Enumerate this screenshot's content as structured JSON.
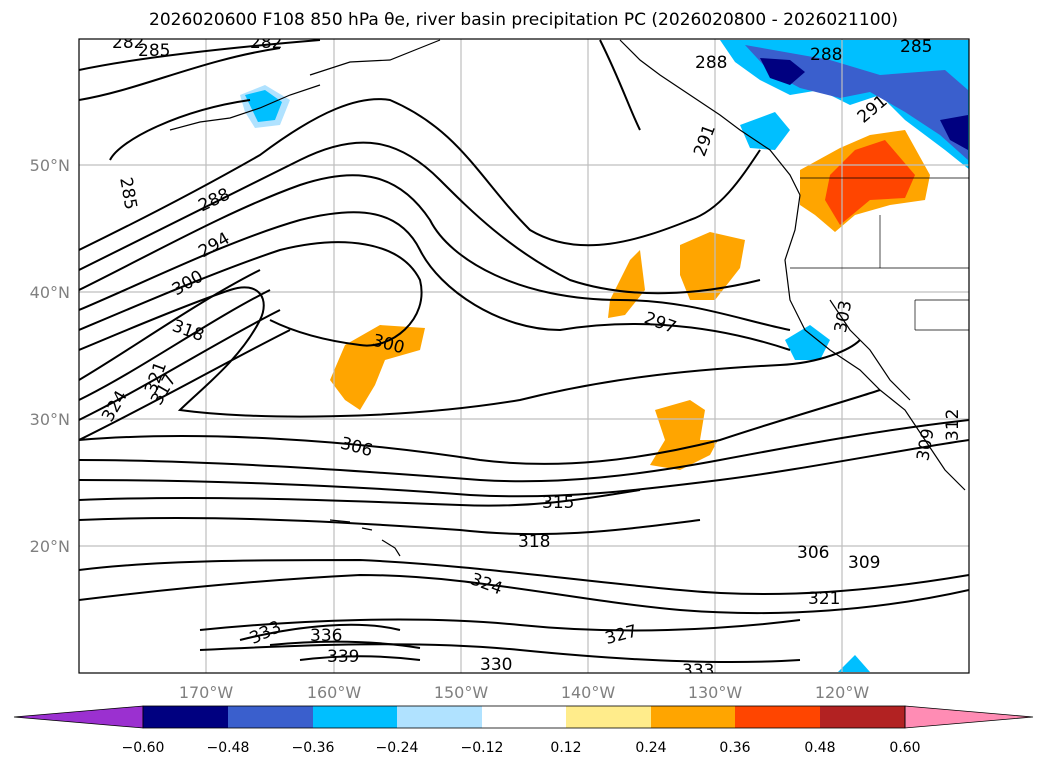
{
  "title": "2026020600 F108 850 hPa θe, river basin precipitation PC (2026020800 - 2026021100)",
  "chart_data": {
    "type": "contour-map",
    "title": "2026020600 F108 850 hPa θe, river basin precipitation PC (2026020800 - 2026021100)",
    "lon_ticks": [
      "170°W",
      "160°W",
      "150°W",
      "140°W",
      "130°W",
      "120°W"
    ],
    "lat_ticks": [
      "50°N",
      "40°N",
      "30°N",
      "20°N"
    ],
    "extent": {
      "lon": [
        -180,
        -110
      ],
      "lat": [
        10,
        60
      ]
    },
    "grid": true,
    "contour_labels": [
      "282",
      "282",
      "285",
      "285",
      "285",
      "288",
      "288",
      "288",
      "291",
      "291",
      "294",
      "297",
      "300",
      "300",
      "303",
      "306",
      "306",
      "309",
      "309",
      "312",
      "315",
      "317",
      "318",
      "318",
      "321",
      "321",
      "324",
      "324",
      "327",
      "330",
      "333",
      "333",
      "336",
      "339"
    ],
    "colorbar": {
      "ticks": [
        "−0.60",
        "−0.48",
        "−0.36",
        "−0.24",
        "−0.12",
        "0.12",
        "0.24",
        "0.36",
        "0.48",
        "0.60"
      ],
      "extend": "both",
      "colors": [
        "#9b30d0",
        "#000080",
        "#3a5fcd",
        "#00bfff",
        "#b0e2ff",
        "#ffffff",
        "#ffec8b",
        "#ffa500",
        "#ff4500",
        "#b22222",
        "#ff8cb4"
      ]
    }
  }
}
